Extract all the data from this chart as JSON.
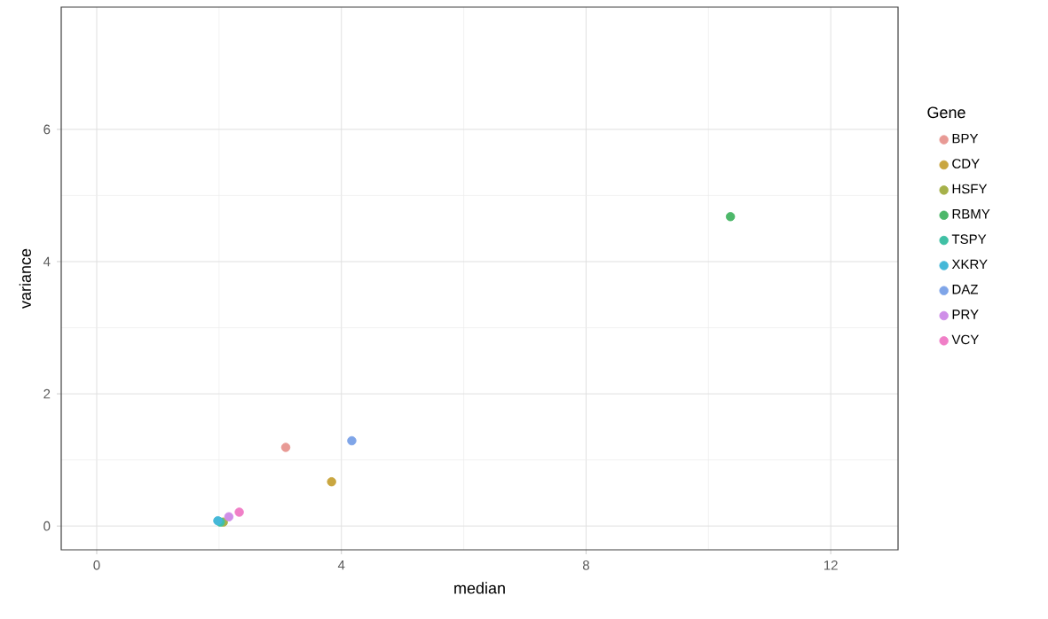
{
  "chart_data": {
    "type": "scatter",
    "xlabel": "median",
    "ylabel": "variance",
    "legend_title": "Gene",
    "xlim": [
      -0.58,
      13.1
    ],
    "ylim": [
      -0.36,
      7.85
    ],
    "xticks": [
      0,
      4,
      8,
      12
    ],
    "yticks": [
      0,
      2,
      4,
      6
    ],
    "grid": true,
    "legend": "right",
    "series": [
      {
        "name": "BPY",
        "color": "#e89a95",
        "x": [
          3.09
        ],
        "values": [
          1.19
        ]
      },
      {
        "name": "CDY",
        "color": "#c9a640",
        "x": [
          3.84
        ],
        "values": [
          0.67
        ]
      },
      {
        "name": "HSFY",
        "color": "#a6b14a",
        "x": [
          2.07
        ],
        "values": [
          0.06
        ]
      },
      {
        "name": "RBMY",
        "color": "#4db86a",
        "x": [
          10.36
        ],
        "values": [
          4.68
        ]
      },
      {
        "name": "TSPY",
        "color": "#40c0a5",
        "x": [
          2.02
        ],
        "values": [
          0.06
        ]
      },
      {
        "name": "XKRY",
        "color": "#45b8d8",
        "x": [
          1.98
        ],
        "values": [
          0.08
        ]
      },
      {
        "name": "DAZ",
        "color": "#7fa5e8",
        "x": [
          4.17
        ],
        "values": [
          1.29
        ]
      },
      {
        "name": "PRY",
        "color": "#cf8fe8",
        "x": [
          2.16
        ],
        "values": [
          0.14
        ]
      },
      {
        "name": "VCY",
        "color": "#f07fc7",
        "x": [
          2.33
        ],
        "values": [
          0.21
        ]
      }
    ]
  }
}
